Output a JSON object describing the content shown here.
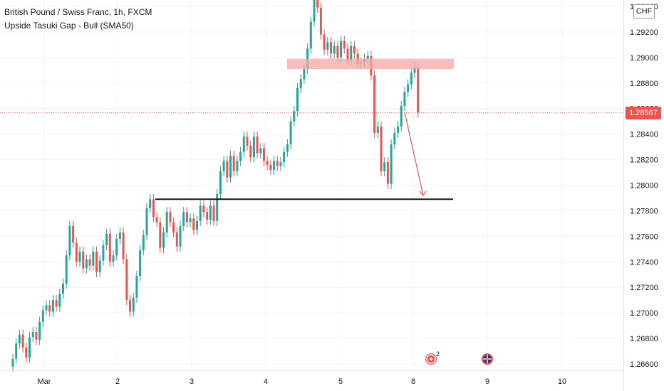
{
  "header": {
    "symbol_line": "British Pound / Swiss Franc, 1h, FXCM",
    "indicator_line": "Upside Tasuki Gap - Bull (SMA50)"
  },
  "currency_label": "CHF",
  "last_price_label": "1.28567",
  "events": {
    "badge_count": "2"
  },
  "colors": {
    "up": "#26a69a",
    "down": "#ef5350",
    "grid": "#f0f3fa",
    "zone": "#f7a5a5",
    "support": "#131722",
    "axis_text": "#131722"
  },
  "chart_data": {
    "type": "candlestick",
    "symbol": "British Pound / Swiss Franc",
    "timeframe": "1h",
    "exchange": "FXCM",
    "indicator": "Upside Tasuki Gap - Bull (SMA50)",
    "ylim": [
      1.2655,
      1.2945
    ],
    "y_ticks": [
      1.266,
      1.268,
      1.27,
      1.272,
      1.274,
      1.276,
      1.278,
      1.28,
      1.282,
      1.284,
      1.286,
      1.288,
      1.29,
      1.292,
      1.294
    ],
    "y_tick_labels": [
      "1.26600",
      "1.26800",
      "1.27000",
      "1.27200",
      "1.27400",
      "1.27600",
      "1.27800",
      "1.28000",
      "1.28200",
      "1.28400",
      "1.28600",
      "1.28800",
      "1.29000",
      "1.29200",
      "1.29400"
    ],
    "x_ticks": [
      "Mar",
      "2",
      "3",
      "4",
      "5",
      "8",
      "9",
      "10"
    ],
    "last_price": 1.28567,
    "resistance_zone": {
      "low": 1.2891,
      "high": 1.2899,
      "from": "4",
      "to": "8"
    },
    "support_line": {
      "price": 1.2789,
      "from": "2",
      "to": "8"
    },
    "projection_arrow": {
      "from_price": 1.2857,
      "to_price": 1.2792
    },
    "closes": [
      1.2664,
      1.2676,
      1.2683,
      1.2673,
      1.2665,
      1.2681,
      1.2685,
      1.2679,
      1.2693,
      1.2702,
      1.2706,
      1.2701,
      1.271,
      1.2705,
      1.2715,
      1.2723,
      1.2745,
      1.2768,
      1.2755,
      1.274,
      1.2748,
      1.2735,
      1.2742,
      1.2737,
      1.2748,
      1.2732,
      1.2741,
      1.2753,
      1.2762,
      1.274,
      1.2745,
      1.2758,
      1.2763,
      1.2742,
      1.271,
      1.2701,
      1.2712,
      1.2729,
      1.2749,
      1.2761,
      1.2782,
      1.2789,
      1.2775,
      1.2771,
      1.2751,
      1.2763,
      1.2779,
      1.2771,
      1.2763,
      1.2752,
      1.2768,
      1.2779,
      1.2771,
      1.2774,
      1.2765,
      1.2772,
      1.2784,
      1.2779,
      1.2773,
      1.2784,
      1.2772,
      1.2793,
      1.2811,
      1.2819,
      1.2806,
      1.2823,
      1.2811,
      1.2819,
      1.2826,
      1.2838,
      1.2831,
      1.2822,
      1.2838,
      1.2825,
      1.2829,
      1.2819,
      1.2816,
      1.2812,
      1.2819,
      1.2815,
      1.2818,
      1.2826,
      1.2832,
      1.285,
      1.2858,
      1.2876,
      1.2883,
      1.2891,
      1.2907,
      1.2928,
      1.2951,
      1.2939,
      1.2918,
      1.2906,
      1.2912,
      1.2903,
      1.2909,
      1.29,
      1.2913,
      1.2907,
      1.2898,
      1.2909,
      1.2903,
      1.2895,
      1.2896,
      1.2899,
      1.2901,
      1.2886,
      1.2841,
      1.2846,
      1.2811,
      1.2818,
      1.2801,
      1.2832,
      1.2841,
      1.2846,
      1.2862,
      1.2873,
      1.2879,
      1.2888,
      1.2892,
      1.2857
    ]
  }
}
